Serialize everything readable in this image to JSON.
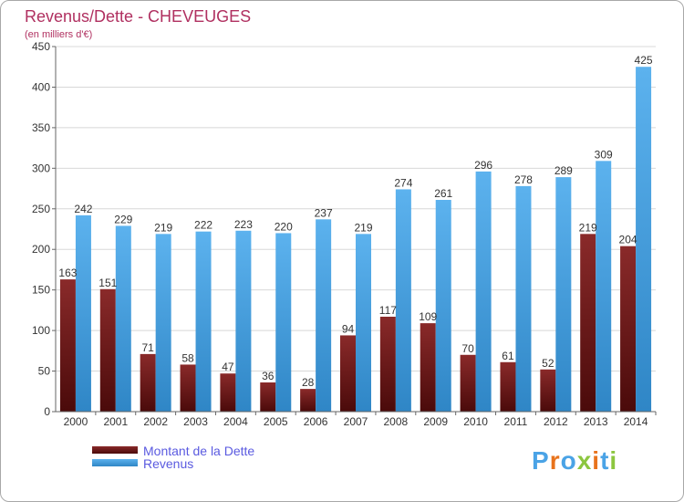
{
  "chart_data": {
    "type": "bar",
    "title": "Revenus/Dette - CHEVEUGES",
    "subtitle": "(en milliers d'€)",
    "categories": [
      "2000",
      "2001",
      "2002",
      "2003",
      "2004",
      "2005",
      "2006",
      "2007",
      "2008",
      "2009",
      "2010",
      "2011",
      "2012",
      "2013",
      "2014"
    ],
    "series": [
      {
        "name": "Montant de la Dette",
        "color": "#7a1e1e",
        "values": [
          163,
          151,
          71,
          58,
          47,
          36,
          28,
          94,
          117,
          109,
          70,
          61,
          52,
          219,
          204
        ]
      },
      {
        "name": "Revenus",
        "color": "#4aa3e6",
        "values": [
          242,
          229,
          219,
          222,
          223,
          220,
          237,
          219,
          274,
          261,
          296,
          278,
          289,
          309,
          425
        ]
      }
    ],
    "ylim": [
      0,
      450
    ],
    "yticks": [
      0,
      50,
      100,
      150,
      200,
      250,
      300,
      350,
      400,
      450
    ],
    "grid": true,
    "legend_position": "bottom-left"
  },
  "logo": {
    "text": [
      "P",
      "r",
      "o",
      "x",
      "i",
      "t",
      "i"
    ],
    "colors": [
      "#4aa3e6",
      "#e8731c",
      "#4aa3e6",
      "#8cc63f",
      "#e8731c",
      "#4aa3e6",
      "#8cc63f"
    ]
  },
  "colors": {
    "title": "#b03060",
    "legend_text": "#5a5ae0",
    "axis": "#666666"
  }
}
